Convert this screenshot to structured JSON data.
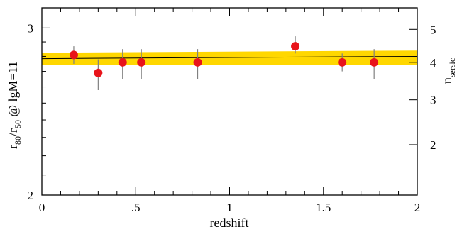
{
  "chart_data": {
    "type": "scatter",
    "xlabel": "redshift",
    "ylabel_left": {
      "main": "r",
      "sub1": "80",
      "slash": "/r",
      "sub2": "50",
      "suffix": " @ lgM=11"
    },
    "ylabel_right": {
      "main": "n",
      "sub": "sersic"
    },
    "xlim": [
      0,
      2
    ],
    "ylim": [
      2,
      3.15
    ],
    "y_scale": "log",
    "x_ticks": [
      "0",
      ".5",
      "1",
      "1.5",
      "2"
    ],
    "x_tick_values": [
      0,
      0.5,
      1,
      1.5,
      2
    ],
    "y_left_ticks": [
      "2",
      "3"
    ],
    "y_left_tick_values": [
      2,
      3
    ],
    "y_right_ticks": [
      "2",
      "3",
      "4",
      "5"
    ],
    "y_right_tick_values_in_left_units": [
      2.26,
      2.52,
      2.76,
      2.99
    ],
    "series": [
      {
        "x": [
          0.17,
          0.3,
          0.43,
          0.53,
          0.83,
          1.35,
          1.6,
          1.77
        ],
        "y": [
          2.81,
          2.69,
          2.76,
          2.76,
          2.76,
          2.87,
          2.76,
          2.76
        ],
        "yerr_low": [
          0.06,
          0.11,
          0.11,
          0.11,
          0.11,
          0.05,
          0.06,
          0.11
        ],
        "yerr_high": [
          0.06,
          0.09,
          0.09,
          0.09,
          0.09,
          0.07,
          0.06,
          0.09
        ],
        "marker_color": "#e8141a",
        "errorbar_color": "#808080"
      }
    ],
    "fit": {
      "x": [
        0,
        2
      ],
      "y": [
        2.785,
        2.8
      ],
      "band_low": [
        2.74,
        2.74
      ],
      "band_high": [
        2.825,
        2.84
      ],
      "line_color": "#000000",
      "band_color": "#ffd700"
    },
    "grid": false
  }
}
